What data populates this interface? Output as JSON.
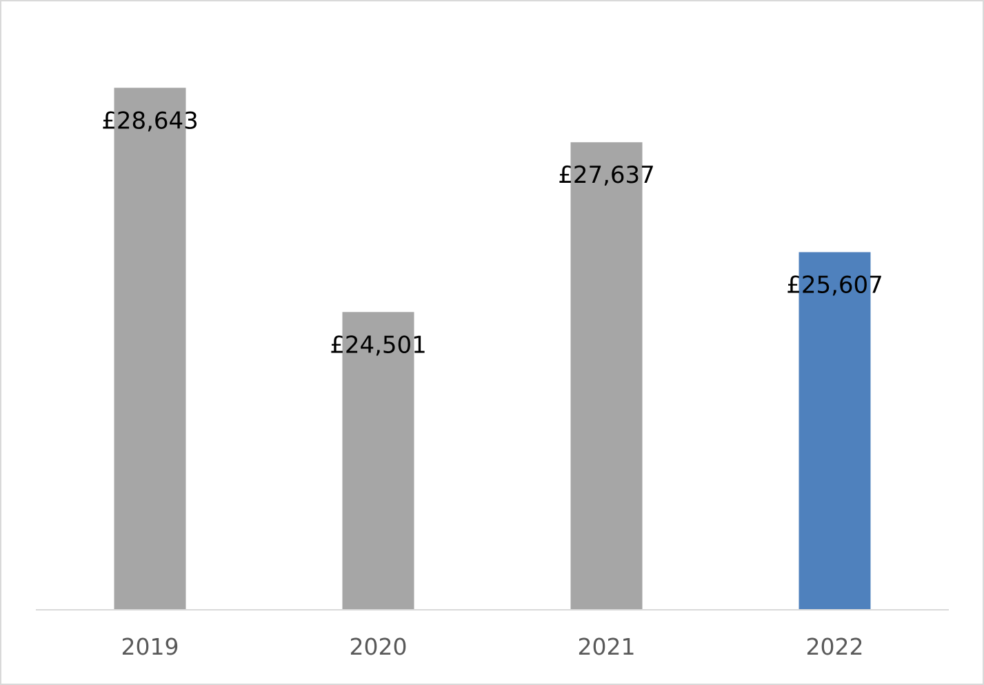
{
  "chart_data": {
    "type": "bar",
    "categories": [
      "2019",
      "2020",
      "2021",
      "2022"
    ],
    "values": [
      28643,
      24501,
      27637,
      25607
    ],
    "data_labels": [
      "£28,643",
      "£24,501",
      "£27,637",
      "£25,607"
    ],
    "colors": [
      "#a6a6a6",
      "#a6a6a6",
      "#a6a6a6",
      "#4f81bd"
    ],
    "title": "",
    "xlabel": "",
    "ylabel": "",
    "ylim": [
      19000,
      29500
    ],
    "grid": false,
    "legend": "none"
  },
  "colors": {
    "axis": "#d9d9d9",
    "highlight": "#4f81bd",
    "default_bar": "#a6a6a6"
  }
}
